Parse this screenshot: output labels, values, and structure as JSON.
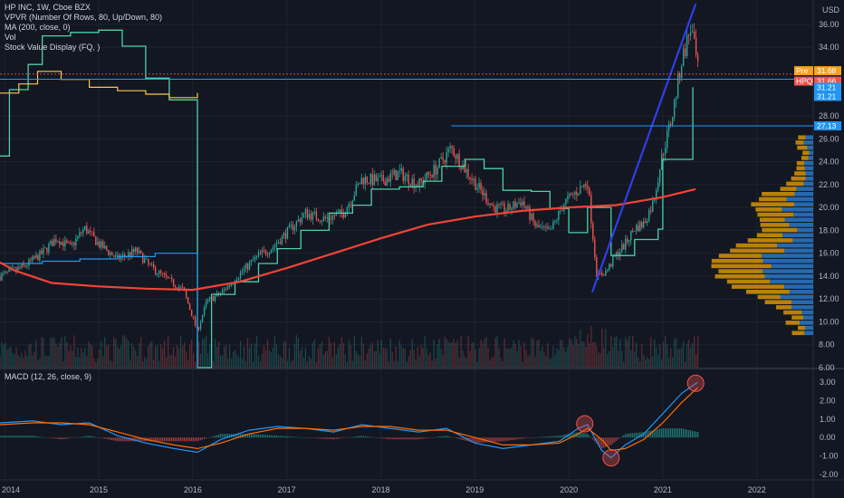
{
  "legend": {
    "title": "HP INC, 1W, Cboe BZX",
    "lines": [
      "VPVR (Number Of Rows, 80, Up/Down, 80)",
      "MA (200, close, 0)",
      "Vol",
      "Stock Value Display (FQ, )"
    ],
    "macd": "MACD (12, 26, close, 9)"
  },
  "currency": "USD",
  "price_tags": [
    {
      "label": "Pre",
      "value": "31.68",
      "color": "#f7a21b"
    },
    {
      "label": "HPQ",
      "value": "31.66",
      "color": "#ef5350"
    },
    {
      "label": "",
      "value": "31.21",
      "color": "#2196f3"
    },
    {
      "label": "",
      "value": "31.21",
      "color": "#2196f3"
    },
    {
      "label": "",
      "value": "27.13",
      "color": "#2196f3"
    }
  ],
  "colors": {
    "background": "#131722",
    "up": "#26a69a",
    "down": "#ef5350",
    "ma": "#f44336",
    "value_line": "#4dd0a6",
    "value_line_yellow": "#f9c74f",
    "blue_line": "#2196f3",
    "trendline": "#2f3ee8",
    "macd": "#2196f3",
    "signal": "#ff6d00",
    "vpvr_up": "#2e86de",
    "vpvr_down": "#f0a500",
    "text": "#b2b5be"
  },
  "chart_data": {
    "type": "candlestick",
    "x_axis": {
      "labels": [
        "2014",
        "2015",
        "2016",
        "2017",
        "2018",
        "2019",
        "2020",
        "2021",
        "2022"
      ]
    },
    "price_axis": {
      "ticks": [
        "36.00",
        "34.00",
        "28.00",
        "26.00",
        "24.00",
        "22.00",
        "20.00",
        "18.00",
        "16.00",
        "14.00",
        "12.00",
        "10.00",
        "8.00",
        "6.00"
      ],
      "ylim": [
        6,
        37.5
      ]
    },
    "macd_axis": {
      "ticks": [
        "3.00",
        "2.00",
        "1.00",
        "0.00",
        "-1.00",
        "-2.00"
      ],
      "ylim": [
        -2.2,
        3.6
      ]
    },
    "close_path": [
      [
        2013.95,
        14.0
      ],
      [
        2014.2,
        14.8
      ],
      [
        2014.4,
        16.0
      ],
      [
        2014.55,
        17.3
      ],
      [
        2014.7,
        16.5
      ],
      [
        2014.85,
        18.2
      ],
      [
        2015.0,
        16.8
      ],
      [
        2015.2,
        15.5
      ],
      [
        2015.4,
        16.2
      ],
      [
        2015.55,
        14.8
      ],
      [
        2015.75,
        13.6
      ],
      [
        2015.9,
        12.8
      ],
      [
        2016.05,
        9.2
      ],
      [
        2016.15,
        11.8
      ],
      [
        2016.3,
        12.5
      ],
      [
        2016.5,
        14.2
      ],
      [
        2016.7,
        15.8
      ],
      [
        2016.85,
        16.5
      ],
      [
        2017.0,
        17.8
      ],
      [
        2017.2,
        19.5
      ],
      [
        2017.4,
        19.0
      ],
      [
        2017.6,
        19.5
      ],
      [
        2017.8,
        22.5
      ],
      [
        2018.0,
        22.3
      ],
      [
        2018.2,
        23.0
      ],
      [
        2018.4,
        22.0
      ],
      [
        2018.6,
        23.5
      ],
      [
        2018.75,
        25.2
      ],
      [
        2018.9,
        23.3
      ],
      [
        2019.05,
        21.6
      ],
      [
        2019.2,
        20.0
      ],
      [
        2019.35,
        19.8
      ],
      [
        2019.5,
        20.6
      ],
      [
        2019.65,
        18.3
      ],
      [
        2019.8,
        17.8
      ],
      [
        2019.95,
        20.4
      ],
      [
        2020.1,
        21.5
      ],
      [
        2020.2,
        22.2
      ],
      [
        2020.3,
        14.0
      ],
      [
        2020.4,
        14.4
      ],
      [
        2020.5,
        15.8
      ],
      [
        2020.6,
        16.8
      ],
      [
        2020.7,
        18.2
      ],
      [
        2020.8,
        18.6
      ],
      [
        2020.9,
        20.5
      ],
      [
        2021.0,
        24.8
      ],
      [
        2021.1,
        28.0
      ],
      [
        2021.2,
        32.8
      ],
      [
        2021.3,
        35.8
      ],
      [
        2021.38,
        31.66
      ]
    ],
    "ma200_path": [
      [
        2013.95,
        15.2
      ],
      [
        2014.1,
        14.5
      ],
      [
        2014.5,
        13.4
      ],
      [
        2015.0,
        13.1
      ],
      [
        2015.5,
        12.9
      ],
      [
        2016.0,
        12.8
      ],
      [
        2016.5,
        13.5
      ],
      [
        2017.0,
        14.7
      ],
      [
        2017.5,
        16.0
      ],
      [
        2018.0,
        17.3
      ],
      [
        2018.5,
        18.5
      ],
      [
        2019.0,
        19.2
      ],
      [
        2019.5,
        19.7
      ],
      [
        2020.0,
        20.0
      ],
      [
        2020.5,
        20.2
      ],
      [
        2021.0,
        20.9
      ],
      [
        2021.35,
        21.6
      ]
    ],
    "value_line_green": [
      [
        2013.95,
        24.5
      ],
      [
        2014.05,
        30.3
      ],
      [
        2014.25,
        32.5
      ],
      [
        2014.4,
        35.0
      ],
      [
        2014.7,
        35.3
      ],
      [
        2015.0,
        35.5
      ],
      [
        2015.25,
        34.1
      ],
      [
        2015.5,
        31.3
      ],
      [
        2015.75,
        29.4
      ],
      [
        2016.02,
        29.4
      ],
      [
        2016.05,
        6.0
      ],
      [
        2016.2,
        12.4
      ],
      [
        2016.45,
        13.5
      ],
      [
        2016.7,
        15.1
      ],
      [
        2016.9,
        16.4
      ],
      [
        2017.15,
        18.0
      ],
      [
        2017.45,
        19.5
      ],
      [
        2017.7,
        20.2
      ],
      [
        2017.9,
        21.6
      ],
      [
        2018.2,
        21.8
      ],
      [
        2018.45,
        22.3
      ],
      [
        2018.65,
        23.6
      ],
      [
        2018.9,
        24.2
      ],
      [
        2019.1,
        23.4
      ],
      [
        2019.3,
        21.5
      ],
      [
        2019.6,
        21.4
      ],
      [
        2019.8,
        19.9
      ],
      [
        2020.0,
        17.8
      ],
      [
        2020.2,
        20.0
      ],
      [
        2020.45,
        15.8
      ],
      [
        2020.7,
        17.2
      ],
      [
        2020.95,
        18.1
      ],
      [
        2021.0,
        24.2
      ],
      [
        2021.3,
        24.2
      ],
      [
        2021.32,
        30.5
      ]
    ],
    "value_line_yellow": [
      [
        2013.95,
        30.0
      ],
      [
        2014.15,
        30.8
      ],
      [
        2014.35,
        31.9
      ],
      [
        2014.6,
        31.2
      ],
      [
        2014.9,
        30.5
      ],
      [
        2015.2,
        30.2
      ],
      [
        2015.5,
        29.9
      ],
      [
        2015.75,
        29.6
      ],
      [
        2016.05,
        30.0
      ]
    ],
    "blue_step_path": [
      [
        2013.95,
        15.1
      ],
      [
        2014.4,
        15.3
      ],
      [
        2014.8,
        15.5
      ],
      [
        2015.2,
        15.7
      ],
      [
        2015.6,
        16.0
      ],
      [
        2016.05,
        16.0
      ],
      [
        2016.05,
        6.0
      ]
    ],
    "trendline": [
      [
        2020.25,
        12.6
      ],
      [
        2021.35,
        37.8
      ]
    ],
    "horizontal_level": 27.13,
    "current_level": 31.21,
    "macd_line": [
      [
        2013.95,
        0.8
      ],
      [
        2014.3,
        0.9
      ],
      [
        2014.6,
        0.7
      ],
      [
        2014.9,
        0.8
      ],
      [
        2015.2,
        0.1
      ],
      [
        2015.5,
        -0.3
      ],
      [
        2015.8,
        -0.6
      ],
      [
        2016.05,
        -0.8
      ],
      [
        2016.3,
        -0.1
      ],
      [
        2016.6,
        0.4
      ],
      [
        2016.9,
        0.6
      ],
      [
        2017.2,
        0.5
      ],
      [
        2017.5,
        0.3
      ],
      [
        2017.8,
        0.7
      ],
      [
        2018.1,
        0.5
      ],
      [
        2018.4,
        0.3
      ],
      [
        2018.7,
        0.5
      ],
      [
        2019.0,
        -0.3
      ],
      [
        2019.3,
        -0.6
      ],
      [
        2019.6,
        -0.4
      ],
      [
        2019.9,
        -0.2
      ],
      [
        2020.1,
        0.5
      ],
      [
        2020.2,
        0.7
      ],
      [
        2020.35,
        -0.7
      ],
      [
        2020.45,
        -1.1
      ],
      [
        2020.6,
        -0.4
      ],
      [
        2020.8,
        0.2
      ],
      [
        2021.0,
        1.3
      ],
      [
        2021.2,
        2.4
      ],
      [
        2021.37,
        3.0
      ]
    ],
    "signal_line": [
      [
        2013.95,
        0.7
      ],
      [
        2014.3,
        0.8
      ],
      [
        2014.6,
        0.8
      ],
      [
        2014.9,
        0.7
      ],
      [
        2015.2,
        0.3
      ],
      [
        2015.5,
        -0.1
      ],
      [
        2015.8,
        -0.4
      ],
      [
        2016.05,
        -0.6
      ],
      [
        2016.3,
        -0.3
      ],
      [
        2016.6,
        0.2
      ],
      [
        2016.9,
        0.5
      ],
      [
        2017.2,
        0.5
      ],
      [
        2017.5,
        0.4
      ],
      [
        2017.8,
        0.6
      ],
      [
        2018.1,
        0.6
      ],
      [
        2018.4,
        0.4
      ],
      [
        2018.7,
        0.4
      ],
      [
        2019.0,
        0.0
      ],
      [
        2019.3,
        -0.4
      ],
      [
        2019.6,
        -0.4
      ],
      [
        2019.9,
        -0.3
      ],
      [
        2020.1,
        0.2
      ],
      [
        2020.2,
        0.5
      ],
      [
        2020.35,
        -0.1
      ],
      [
        2020.45,
        -0.7
      ],
      [
        2020.6,
        -0.6
      ],
      [
        2020.8,
        -0.1
      ],
      [
        2021.0,
        0.8
      ],
      [
        2021.2,
        1.9
      ],
      [
        2021.37,
        2.7
      ]
    ],
    "annotations": [
      {
        "type": "circle",
        "pane": "macd",
        "x": 2020.17,
        "y": 0.75
      },
      {
        "type": "circle",
        "pane": "macd",
        "x": 2020.45,
        "y": -1.1
      },
      {
        "type": "circle",
        "pane": "macd",
        "x": 2021.35,
        "y": 2.95
      }
    ]
  }
}
